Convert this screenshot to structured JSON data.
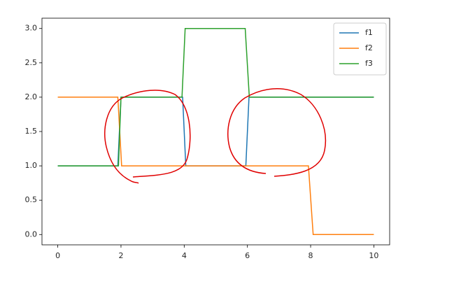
{
  "chart_data": {
    "type": "line",
    "series": [
      {
        "name": "f1",
        "color": "#1f77b4",
        "x": [
          0,
          1.9,
          2.0,
          3.95,
          4.05,
          5.95,
          6.05,
          10
        ],
        "values": [
          1,
          1,
          2,
          2,
          1,
          1,
          2,
          2
        ]
      },
      {
        "name": "f2",
        "color": "#ff7f0e",
        "x": [
          0,
          1.9,
          2.02,
          7.93,
          8.08,
          10
        ],
        "values": [
          2,
          2,
          1,
          1,
          0,
          0
        ]
      },
      {
        "name": "f3",
        "color": "#2ca02c",
        "x": [
          0,
          1.92,
          2.0,
          3.93,
          4.03,
          5.93,
          6.06,
          10
        ],
        "values": [
          1,
          1,
          2,
          2,
          3,
          3,
          2,
          2
        ]
      }
    ],
    "xlim": [
      -0.5,
      10.5
    ],
    "xticks": [
      0,
      2,
      4,
      6,
      8,
      10
    ],
    "ylim": [
      -0.15,
      3.15
    ],
    "yticks": [
      {
        "value": 0,
        "label": "0.0"
      },
      {
        "value": 0.5,
        "label": "0.5"
      },
      {
        "value": 1,
        "label": "1.0"
      },
      {
        "value": 1.5,
        "label": "1.5"
      },
      {
        "value": 2,
        "label": "2.0"
      },
      {
        "value": 2.5,
        "label": "2.5"
      },
      {
        "value": 3,
        "label": "3.0"
      }
    ],
    "legend": "upper right"
  }
}
